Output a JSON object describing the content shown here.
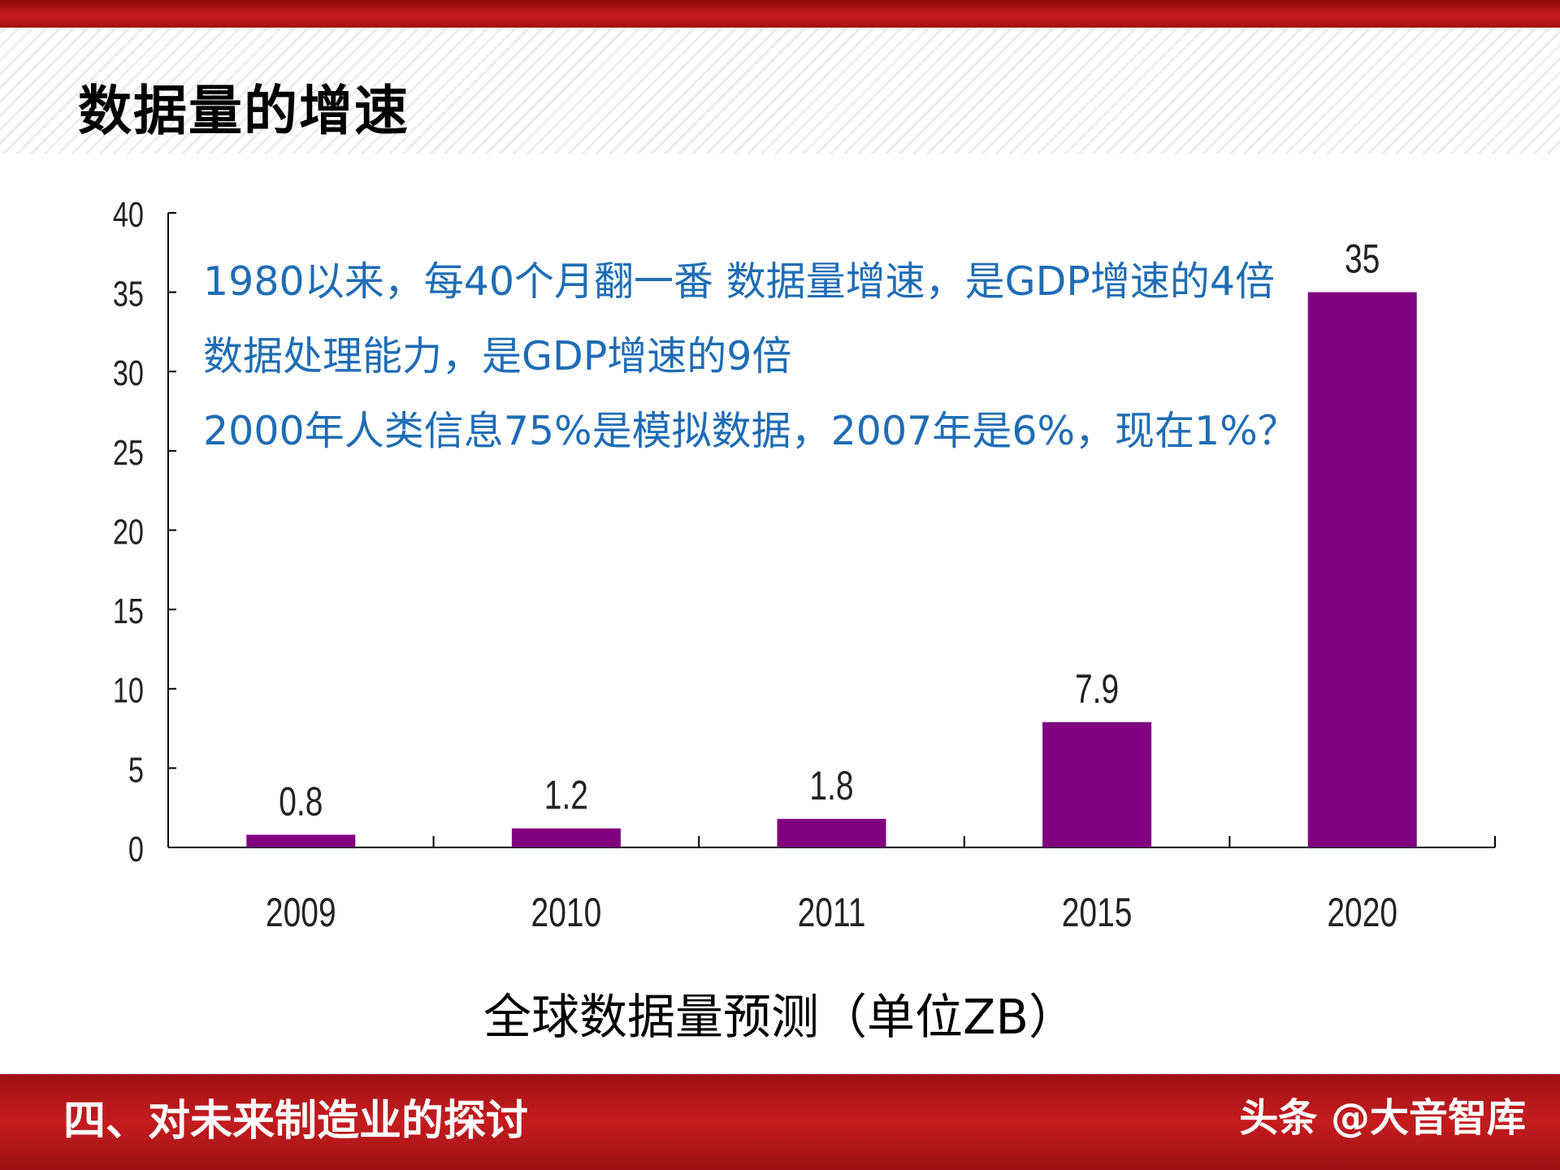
{
  "slide": {
    "title": "数据量的增速",
    "annotations": [
      "1980以来，每40个月翻一番 数据量增速，是GDP增速的4倍",
      "数据处理能力，是GDP增速的9倍",
      "2000年人类信息75%是模拟数据，2007年是6%，现在1%？"
    ],
    "footer_section": "四、对未来制造业的探讨",
    "watermark": "头条 @大音智库"
  },
  "chart_data": {
    "type": "bar",
    "title": "全球数据量预测（单位ZB）",
    "categories": [
      "2009",
      "2010",
      "2011",
      "2015",
      "2020"
    ],
    "values": [
      0.8,
      1.2,
      1.8,
      7.9,
      35
    ],
    "data_labels": [
      "0.8",
      "1.2",
      "1.8",
      "7.9",
      "35"
    ],
    "y_ticks": [
      "0",
      "5",
      "10",
      "15",
      "20",
      "25",
      "30",
      "35",
      "40"
    ],
    "ylim": [
      0,
      40
    ],
    "xlabel": "",
    "ylabel": "",
    "bar_color": "#800080",
    "grid": false,
    "legend": "none"
  },
  "colors": {
    "annotation_text": "#1f6db4",
    "banner_red": "#c41d20"
  }
}
